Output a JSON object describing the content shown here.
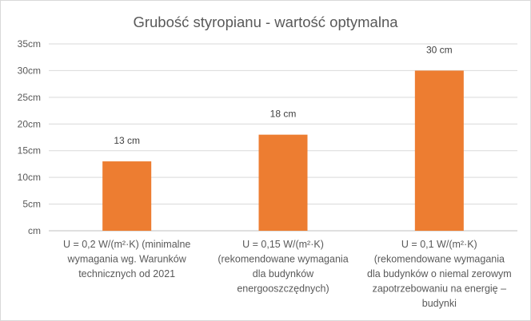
{
  "chart_data": {
    "type": "bar",
    "title": "Grubość styropianu - wartość optymalna",
    "xlabel": "",
    "ylabel": "",
    "ylim": [
      0,
      35
    ],
    "y_tick_values": [
      0,
      5,
      10,
      15,
      20,
      25,
      30,
      35
    ],
    "y_tick_labels": [
      "cm",
      "5cm",
      "10cm",
      "15cm",
      "20cm",
      "25cm",
      "30cm",
      "35cm"
    ],
    "grid": true,
    "legend": "none",
    "bar_color": "#ED7D31",
    "categories": [
      [
        "U = 0,2 W/(m²·K) (minimalne",
        "wymagania wg. Warunków",
        "technicznych od 2021"
      ],
      [
        "U = 0,15 W/(m²·K)",
        "(rekomendowane wymagania",
        "dla budynków",
        "energooszczędnych)"
      ],
      [
        "U = 0,1 W/(m²·K)",
        "(rekomendowane wymagania",
        "dla budynków  o niemal zerowym",
        "zapotrzebowaniu  na energię –",
        "budynki"
      ]
    ],
    "values": [
      13,
      18,
      30
    ],
    "data_labels": [
      "13 cm",
      "18 cm",
      "30 cm"
    ]
  }
}
